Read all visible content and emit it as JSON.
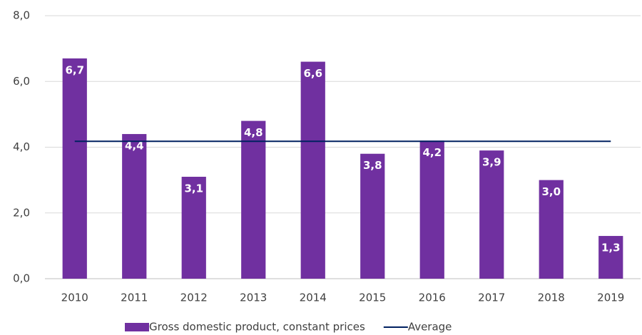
{
  "chart_data": {
    "type": "bar",
    "categories": [
      "2010",
      "2011",
      "2012",
      "2013",
      "2014",
      "2015",
      "2016",
      "2017",
      "2018",
      "2019"
    ],
    "series": [
      {
        "name": "Gross domestic product, constant prices",
        "type": "bar",
        "color": "#7030a0",
        "values": [
          6.7,
          4.4,
          3.1,
          4.8,
          6.6,
          3.8,
          4.2,
          3.9,
          3.0,
          1.3
        ],
        "value_labels": [
          "6,7",
          "4,4",
          "3,1",
          "4,8",
          "6,6",
          "3,8",
          "4,2",
          "3,9",
          "3,0",
          "1,3"
        ]
      },
      {
        "name": "Average",
        "type": "line",
        "color": "#002060",
        "values": [
          4.18,
          4.18,
          4.18,
          4.18,
          4.18,
          4.18,
          4.18,
          4.18,
          4.18,
          4.18
        ]
      }
    ],
    "ylim": [
      0,
      8
    ],
    "yticks": [
      {
        "value": 0,
        "label": "0,0"
      },
      {
        "value": 2,
        "label": "2,0"
      },
      {
        "value": 4,
        "label": "4,0"
      },
      {
        "value": 6,
        "label": "6,0"
      },
      {
        "value": 8,
        "label": "8,0"
      }
    ],
    "grid": true,
    "legend": "bottom"
  }
}
